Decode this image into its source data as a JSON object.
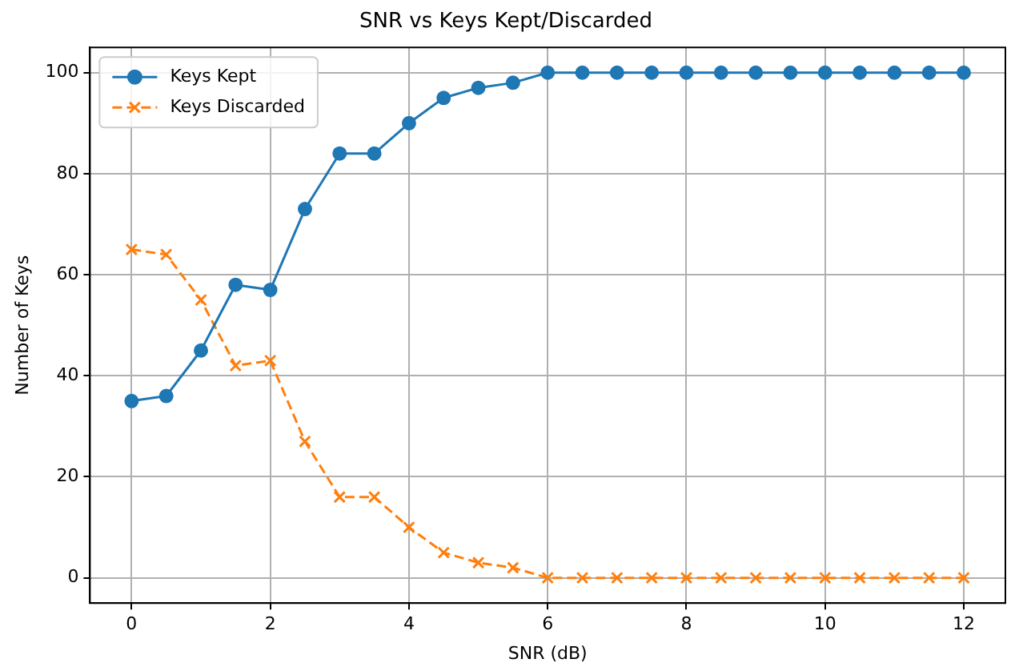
{
  "chart_data": {
    "type": "line",
    "title": "SNR vs Keys Kept/Discarded",
    "xlabel": "SNR (dB)",
    "ylabel": "Number of Keys",
    "x": [
      0,
      0.5,
      1,
      1.5,
      2,
      2.5,
      3,
      3.5,
      4,
      4.5,
      5,
      5.5,
      6,
      6.5,
      7,
      7.5,
      8,
      8.5,
      9,
      9.5,
      10,
      10.5,
      11,
      11.5,
      12
    ],
    "series": [
      {
        "name": "Keys Kept",
        "color": "#1f77b4",
        "marker": "circle",
        "line_style": "solid",
        "values": [
          35,
          36,
          45,
          58,
          57,
          73,
          84,
          84,
          90,
          95,
          97,
          98,
          100,
          100,
          100,
          100,
          100,
          100,
          100,
          100,
          100,
          100,
          100,
          100,
          100
        ]
      },
      {
        "name": "Keys Discarded",
        "color": "#ff7f0e",
        "marker": "cross",
        "line_style": "dashed",
        "values": [
          65,
          64,
          55,
          42,
          43,
          27,
          16,
          16,
          10,
          5,
          3,
          2,
          0,
          0,
          0,
          0,
          0,
          0,
          0,
          0,
          0,
          0,
          0,
          0,
          0
        ]
      }
    ],
    "xlim": [
      -0.6,
      12.6
    ],
    "xticks": [
      0,
      2,
      4,
      6,
      8,
      10,
      12
    ],
    "ylim": [
      -5,
      105
    ],
    "yticks": [
      0,
      20,
      40,
      60,
      80,
      100
    ],
    "grid": true,
    "legend": "top left"
  }
}
